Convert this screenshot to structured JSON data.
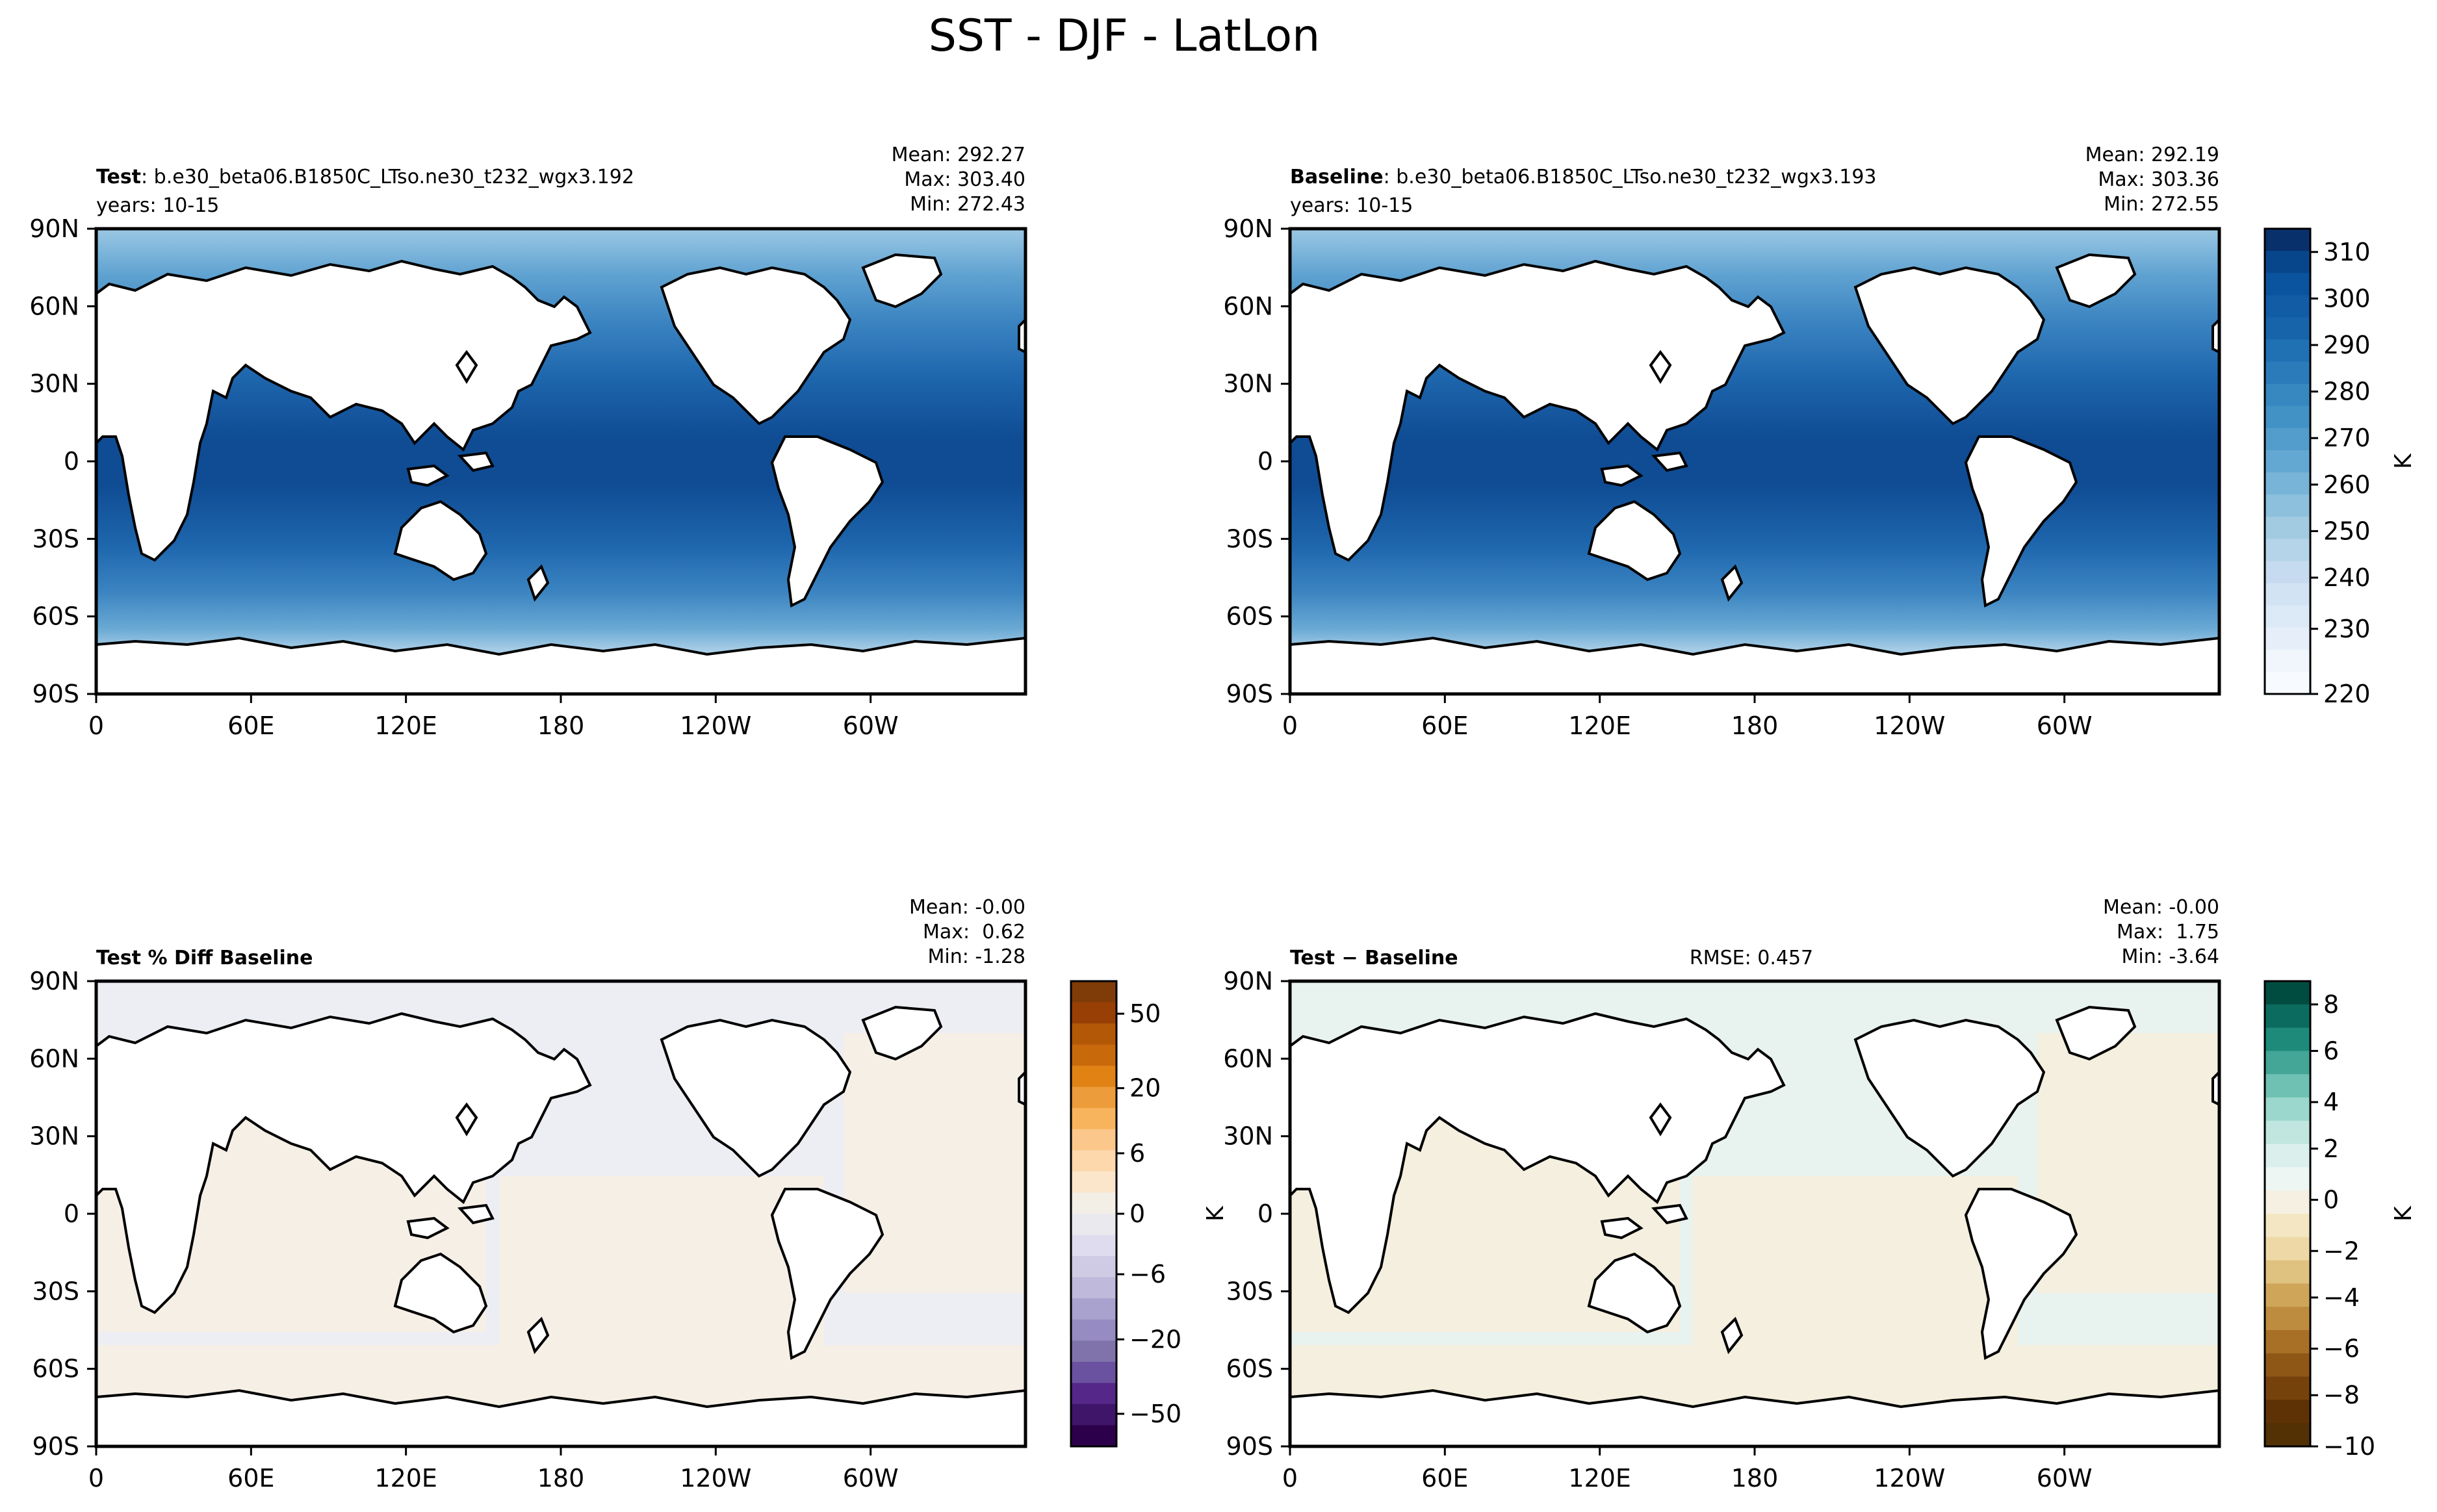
{
  "figure": {
    "title": "SST - DJF - LatLon"
  },
  "panels": [
    {
      "id": "test",
      "label_bold": "Test",
      "label_rest": ": b.e30_beta06.B1850C_LTso.ne30_t232_wgx3.192",
      "years": "years: 10-15",
      "stats": [
        "Mean: 292.27",
        "Max: 303.40",
        "Min: 272.43"
      ],
      "rmse": "",
      "colormap": "blues"
    },
    {
      "id": "baseline",
      "label_bold": "Baseline",
      "label_rest": ": b.e30_beta06.B1850C_LTso.ne30_t232_wgx3.193",
      "years": "years: 10-15",
      "stats": [
        "Mean: 292.19",
        "Max: 303.36",
        "Min: 272.55"
      ],
      "rmse": "",
      "colormap": "blues"
    },
    {
      "id": "pctdiff",
      "label_bold": "Test % Diff Baseline",
      "label_rest": "",
      "years": "",
      "stats": [
        "Mean: -0.00",
        "Max:  0.62",
        "Min: -1.28"
      ],
      "rmse": "",
      "colormap": "puor"
    },
    {
      "id": "diff",
      "label_bold": "Test − Baseline",
      "label_rest": "",
      "years": "",
      "stats": [
        "Mean: -0.00",
        "Max:  1.75",
        "Min: -3.64"
      ],
      "rmse": "RMSE: 0.457",
      "colormap": "brbg"
    }
  ],
  "chart_data": [
    {
      "type": "heatmap",
      "title": "Test : b.e30_beta06.B1850C_LTso.ne30_t232_wgx3.192",
      "variable": "SST",
      "season": "DJF",
      "xlabel": "",
      "ylabel": "",
      "x_ticks": [
        "0",
        "60E",
        "120E",
        "180",
        "120W",
        "60W"
      ],
      "y_ticks": [
        "90N",
        "60N",
        "30N",
        "0",
        "30S",
        "60S",
        "90S"
      ],
      "xlim": [
        0,
        360
      ],
      "ylim": [
        -90,
        90
      ],
      "stats": {
        "mean": 292.27,
        "max": 303.4,
        "min": 272.43
      }
    },
    {
      "type": "heatmap",
      "title": "Baseline : b.e30_beta06.B1850C_LTso.ne30_t232_wgx3.193",
      "variable": "SST",
      "season": "DJF",
      "x_ticks": [
        "0",
        "60E",
        "120E",
        "180",
        "120W",
        "60W"
      ],
      "y_ticks": [
        "90N",
        "60N",
        "30N",
        "0",
        "30S",
        "60S",
        "90S"
      ],
      "xlim": [
        0,
        360
      ],
      "ylim": [
        -90,
        90
      ],
      "stats": {
        "mean": 292.19,
        "max": 303.36,
        "min": 272.55
      }
    },
    {
      "type": "heatmap",
      "title": "Test % Diff Baseline",
      "x_ticks": [
        "0",
        "60E",
        "120E",
        "180",
        "120W",
        "60W"
      ],
      "y_ticks": [
        "90N",
        "60N",
        "30N",
        "0",
        "30S",
        "60S",
        "90S"
      ],
      "xlim": [
        0,
        360
      ],
      "ylim": [
        -90,
        90
      ],
      "stats": {
        "mean": -0.0,
        "max": 0.62,
        "min": -1.28
      }
    },
    {
      "type": "heatmap",
      "title": "Test − Baseline",
      "x_ticks": [
        "0",
        "60E",
        "120E",
        "180",
        "120W",
        "60W"
      ],
      "y_ticks": [
        "90N",
        "60N",
        "30N",
        "0",
        "30S",
        "60S",
        "90S"
      ],
      "xlim": [
        0,
        360
      ],
      "ylim": [
        -90,
        90
      ],
      "stats": {
        "mean": -0.0,
        "max": 1.75,
        "min": -3.64,
        "rmse": 0.457
      }
    }
  ],
  "colorbars": [
    {
      "id": "cb-sst",
      "label": "K",
      "ticks": [
        "310",
        "300",
        "290",
        "280",
        "270",
        "260",
        "250",
        "240",
        "230",
        "220"
      ],
      "colors": [
        "#08306b",
        "#08468c",
        "#0a539e",
        "#115ca5",
        "#1764ab",
        "#2070b4",
        "#2b7bba",
        "#3787c0",
        "#4292c6",
        "#529dcc",
        "#63a8d3",
        "#77b4d8",
        "#8cc0dd",
        "#a2cbe2",
        "#b5d4e9",
        "#c6dbef",
        "#d2e3f3",
        "#dce9f6",
        "#e6eff9",
        "#f0f6fc",
        "#f7fbff"
      ]
    },
    {
      "id": "cb-pct",
      "label": "",
      "ticks": [
        "50",
        "20",
        "6",
        "0",
        "−6",
        "−20",
        "−50"
      ],
      "colors": [
        "#7f3b08",
        "#983f06",
        "#b35806",
        "#c8690b",
        "#e08214",
        "#ed9c3b",
        "#f8b45c",
        "#fbc78b",
        "#fdd8ad",
        "#fbe6cb",
        "#f3eee6",
        "#e9e9ee",
        "#dedcee",
        "#cfcbe4",
        "#bfb9dc",
        "#a9a2cf",
        "#968cc3",
        "#8073ac",
        "#6b52a0",
        "#542788",
        "#3e1569",
        "#2d004b"
      ]
    },
    {
      "id": "cb-diff",
      "label": "K",
      "ticks": [
        "8",
        "6",
        "4",
        "2",
        "0",
        "−2",
        "−4",
        "−6",
        "−8",
        "−10"
      ],
      "colors": [
        "#004c40",
        "#0b6b5e",
        "#1d8a7a",
        "#43a696",
        "#6fc2b3",
        "#9bd7cc",
        "#c0e6df",
        "#dbf0ec",
        "#eef6f3",
        "#f5f0e1",
        "#f4e6c3",
        "#eed9a6",
        "#dfc280",
        "#cfa55a",
        "#be8c3f",
        "#a86f27",
        "#8f5716",
        "#76420c",
        "#5e3204",
        "#543005"
      ]
    }
  ],
  "colors": {
    "land": "#ffffff",
    "ocean_deep": "#1e66ad",
    "ocean_warm": "#0f4c94",
    "ocean_cool": "#4c96ca",
    "ocean_cold": "#7fb5db",
    "pct_pos": "#f6eee4",
    "pct_neg": "#eceef4",
    "diff_pos": "#f5eedc",
    "diff_neg": "#e8f2ef",
    "axis": "#000000"
  },
  "icons": {}
}
